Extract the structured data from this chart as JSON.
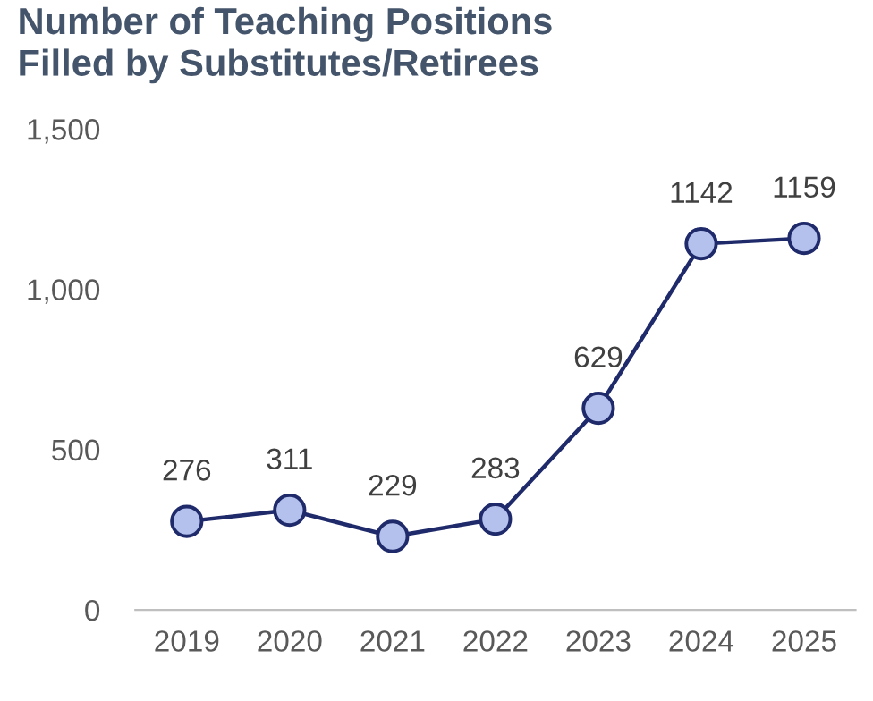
{
  "chart_data": {
    "type": "line",
    "title": "Number of Teaching Positions\nFilled by Substitutes/Retirees",
    "categories": [
      "2019",
      "2020",
      "2021",
      "2022",
      "2023",
      "2024",
      "2025"
    ],
    "series": [
      {
        "color": "#1f2a6b",
        "values": [
          276,
          311,
          229,
          283,
          629,
          1142,
          1159
        ]
      }
    ],
    "ylim": [
      0,
      1500
    ],
    "yticks": [
      0,
      500,
      {
        "value": 1000,
        "label": "1,000"
      },
      {
        "value": 1500,
        "label": "1,500"
      }
    ],
    "marker": "circle",
    "line_style": "solid",
    "data_labels": true,
    "grid": false,
    "legend": false
  }
}
